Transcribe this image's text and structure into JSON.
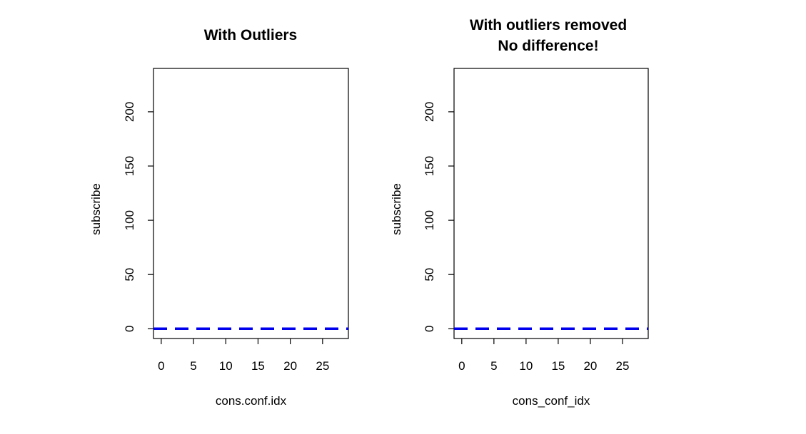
{
  "chart_data": [
    {
      "type": "line",
      "title": [
        "With Outliers"
      ],
      "xlabel": "cons.conf.idx",
      "ylabel": "subscribe",
      "xlim": [
        -1.2,
        29
      ],
      "ylim": [
        -9,
        240
      ],
      "xticks": [
        0,
        5,
        10,
        15,
        20,
        25
      ],
      "yticks": [
        0,
        50,
        100,
        150,
        200
      ],
      "series": [
        {
          "x": [
            -1.2,
            29
          ],
          "y": [
            0,
            0
          ],
          "color": "#0000ee",
          "style": "dashed"
        }
      ]
    },
    {
      "type": "line",
      "title": [
        "With outliers removed",
        "No difference!"
      ],
      "xlabel": "cons_conf_idx",
      "ylabel": "subscribe",
      "xlim": [
        -1.2,
        29
      ],
      "ylim": [
        -9,
        240
      ],
      "xticks": [
        0,
        5,
        10,
        15,
        20,
        25
      ],
      "yticks": [
        0,
        50,
        100,
        150,
        200
      ],
      "series": [
        {
          "x": [
            -1.2,
            29
          ],
          "y": [
            0,
            0
          ],
          "color": "#0000ee",
          "style": "dashed"
        }
      ]
    }
  ]
}
